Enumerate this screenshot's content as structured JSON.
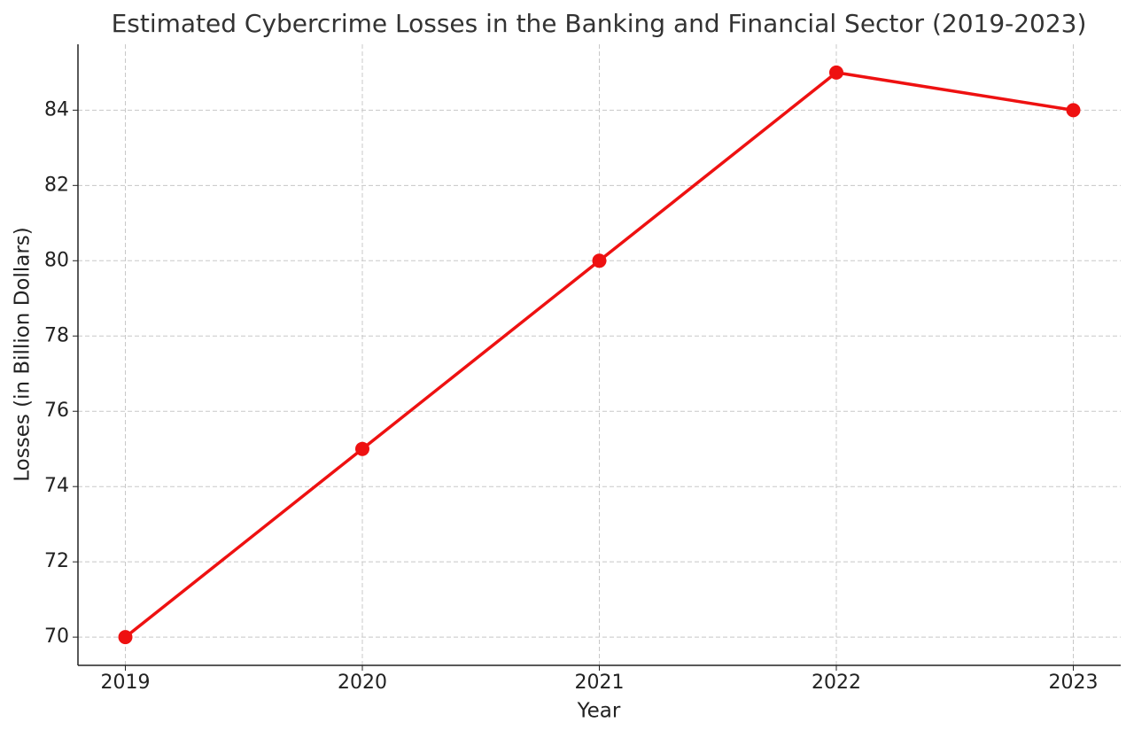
{
  "chart_data": {
    "type": "line",
    "title": "Estimated Cybercrime Losses in the Banking and Financial Sector (2019-2023)",
    "x_label": "Year",
    "y_label": "Losses (in Billion Dollars)",
    "x": [
      2019,
      2020,
      2021,
      2022,
      2023
    ],
    "series": [
      {
        "color": "#ee1111",
        "values": [
          70,
          75,
          80,
          85,
          84
        ]
      }
    ],
    "xlim": [
      2018.8,
      2023.2
    ],
    "xticks": [
      2019,
      2020,
      2021,
      2022,
      2023
    ],
    "ylim": [
      69.25,
      85.75
    ],
    "yticks": [
      70,
      72,
      74,
      76,
      78,
      80,
      82,
      84
    ],
    "grid": true
  }
}
